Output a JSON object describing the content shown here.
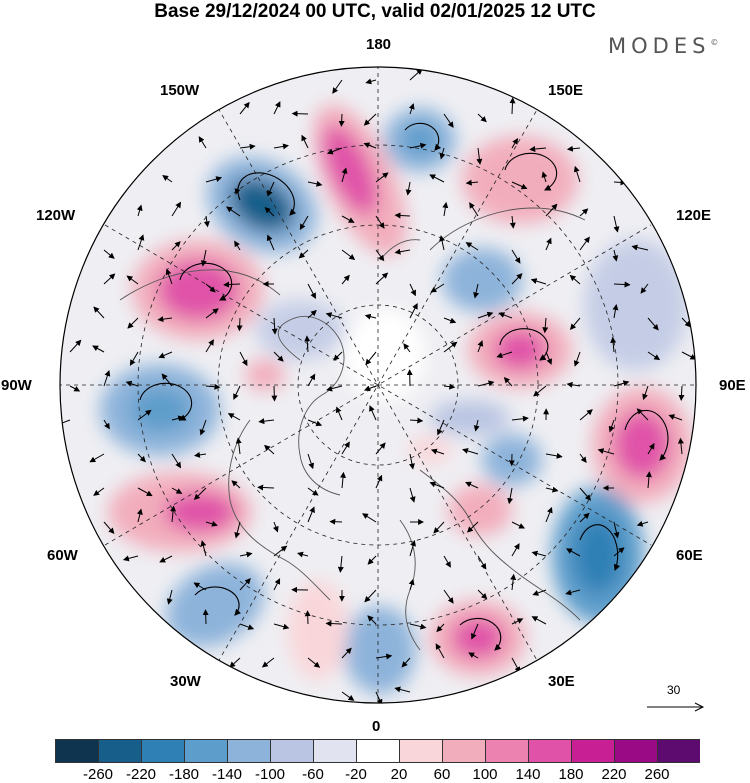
{
  "title": "Base 29/12/2024 00 UTC, valid 02/01/2025 12 UTC",
  "logo": {
    "text": "MODES",
    "mark": "©"
  },
  "longitude_labels": {
    "top": "180",
    "top_right": "150E",
    "right_upper": "120E",
    "right": "90E",
    "right_lower": "60E",
    "bottom_right": "30E",
    "bottom": "0",
    "bottom_left": "30W",
    "left_lower": "60W",
    "left": "90W",
    "left_upper": "120W",
    "top_left": "150W"
  },
  "reference_vector": {
    "label": "30"
  },
  "colorbar": {
    "colors": [
      "#0f3450",
      "#185e8a",
      "#2f80b5",
      "#5d9dcb",
      "#8db3da",
      "#b9c5e2",
      "#e1e3f0",
      "#ffffff",
      "#f9d6d9",
      "#f2adbc",
      "#ec82b0",
      "#e052a8",
      "#c81f95",
      "#990a84",
      "#5d0b6e"
    ],
    "tick_labels": [
      "-260",
      "-220",
      "-180",
      "-140",
      "-100",
      "-60",
      "-20",
      "20",
      "60",
      "100",
      "140",
      "180",
      "220",
      "260"
    ]
  }
}
